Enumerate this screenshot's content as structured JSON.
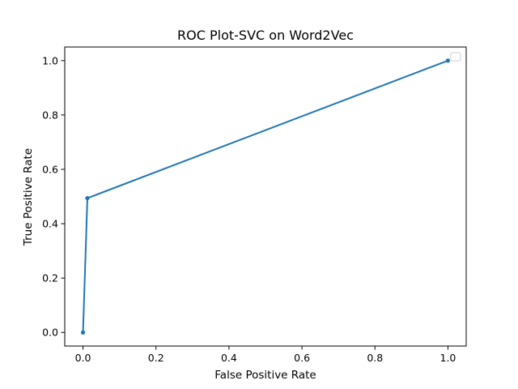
{
  "chart_data": {
    "type": "line",
    "title": "ROC Plot-SVC on Word2Vec",
    "xlabel": "False Positive Rate",
    "ylabel": "True Positive Rate",
    "xlim": [
      -0.05,
      1.05
    ],
    "ylim": [
      -0.05,
      1.05
    ],
    "xticks": [
      0.0,
      0.2,
      0.4,
      0.6,
      0.8,
      1.0
    ],
    "yticks": [
      0.0,
      0.2,
      0.4,
      0.6,
      0.8,
      1.0
    ],
    "xtick_labels": [
      "0.0",
      "0.2",
      "0.4",
      "0.6",
      "0.8",
      "1.0"
    ],
    "ytick_labels": [
      "0.0",
      "0.2",
      "0.4",
      "0.6",
      "0.8",
      "1.0"
    ],
    "grid": false,
    "legend": {
      "placement": "top-right",
      "entries": []
    },
    "series": [
      {
        "color": "#1f77b4",
        "marker": "circle",
        "x": [
          0.0,
          0.012,
          1.0
        ],
        "y": [
          0.0,
          0.494,
          1.0
        ]
      }
    ]
  }
}
